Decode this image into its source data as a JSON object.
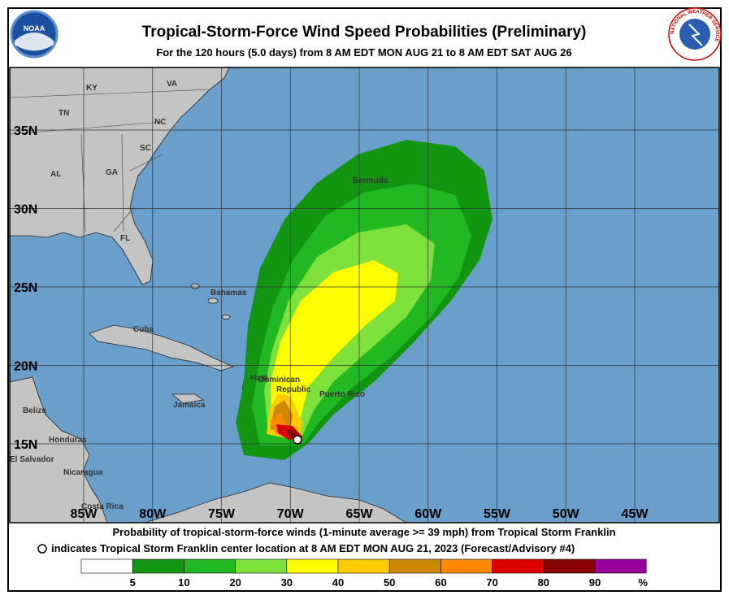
{
  "header": {
    "title": "Tropical-Storm-Force Wind Speed Probabilities (Preliminary)",
    "subtitle": "For the 120 hours (5.0 days) from 8 AM EDT MON AUG 21 to 8 AM EDT SAT AUG 26"
  },
  "logos": {
    "noaa": "NOAA",
    "nws": "NATIONAL WEATHER SERVICE"
  },
  "map": {
    "latitudes": [
      {
        "value": 35,
        "label": "35N"
      },
      {
        "value": 30,
        "label": "30N"
      },
      {
        "value": 25,
        "label": "25N"
      },
      {
        "value": 20,
        "label": "20N"
      },
      {
        "value": 15,
        "label": "15N"
      }
    ],
    "longitudes": [
      {
        "value": 85,
        "label": "85W"
      },
      {
        "value": 80,
        "label": "80W"
      },
      {
        "value": 75,
        "label": "75W"
      },
      {
        "value": 70,
        "label": "70W"
      },
      {
        "value": 65,
        "label": "65W"
      },
      {
        "value": 60,
        "label": "60W"
      },
      {
        "value": 55,
        "label": "55W"
      },
      {
        "value": 50,
        "label": "50W"
      },
      {
        "value": 45,
        "label": "45W"
      }
    ],
    "places": [
      "KY",
      "VA",
      "TN",
      "NC",
      "SC",
      "AL",
      "GA",
      "FL",
      "Bermuda",
      "Bahamas",
      "Cuba",
      "Haiti",
      "Dominican",
      "Republic",
      "Jamaica",
      "Puerto Rico",
      "Belize",
      "Honduras",
      "El Salvador",
      "Nicaragua",
      "Costa Rica"
    ]
  },
  "footer": {
    "line1": "Probability of tropical-storm-force winds (1-minute average >= 39 mph) from Tropical Storm Franklin",
    "line2": "indicates Tropical Storm Franklin center location at 8 AM EDT MON AUG 21, 2023 (Forecast/Advisory #4)"
  },
  "legend": {
    "levels": [
      5,
      10,
      20,
      30,
      40,
      50,
      60,
      70,
      80,
      90
    ],
    "unit": "%",
    "colors": [
      "#ffffff",
      "#129612",
      "#22b822",
      "#7ee03a",
      "#ffff00",
      "#ffcc00",
      "#cc8800",
      "#ff8800",
      "#dd0000",
      "#880000",
      "#990099"
    ]
  }
}
